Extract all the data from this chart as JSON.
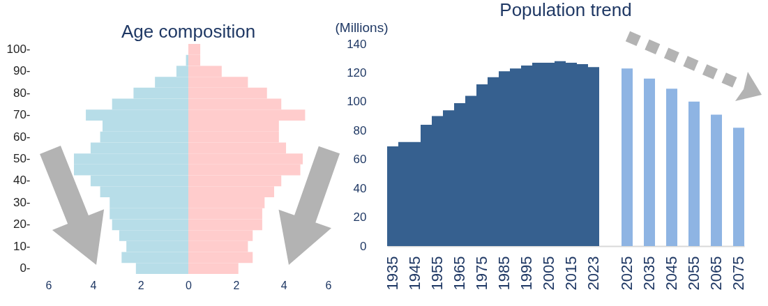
{
  "chart_data": [
    {
      "type": "bar",
      "orientation": "horizontal",
      "stacked": true,
      "title": "Age composition",
      "categories": [
        "100-",
        null,
        "90-",
        null,
        "80-",
        null,
        "70-",
        null,
        "60-",
        null,
        "50-",
        null,
        "40-",
        null,
        "30-",
        null,
        "20-",
        null,
        "10-",
        null,
        "0-"
      ],
      "series": [
        {
          "color": "#b7dde8",
          "values": [
            0,
            -0.1,
            -0.5,
            -1.4,
            -2.3,
            -3.2,
            -4.3,
            -3.6,
            -3.7,
            -4.1,
            -4.8,
            -4.8,
            -4.1,
            -3.7,
            -3.3,
            -3.3,
            -3.2,
            -2.9,
            -2.6,
            -2.8,
            -2.2
          ]
        },
        {
          "color": "#ffcccc",
          "values": [
            0.5,
            0.5,
            1.4,
            2.5,
            3.3,
            3.9,
            4.9,
            3.8,
            3.8,
            4.1,
            4.8,
            4.7,
            3.9,
            3.6,
            3.2,
            3.1,
            3.1,
            2.7,
            2.5,
            2.7,
            2.1
          ]
        }
      ],
      "xlim": [
        -6,
        6
      ],
      "xticks": [
        {
          "value": -6,
          "label": "6"
        },
        {
          "value": -4,
          "label": "4"
        },
        {
          "value": -2,
          "label": "2"
        },
        0,
        2,
        4,
        6
      ]
    },
    {
      "type": "bar",
      "title": "Population trend",
      "ylabel": "(Millions)",
      "categories": [
        "1935",
        null,
        "1945",
        null,
        "1955",
        null,
        "1965",
        null,
        "1975",
        null,
        "1985",
        null,
        "1995",
        null,
        "2005",
        null,
        "2015",
        null,
        "2023",
        null,
        null,
        "2025",
        null,
        "2035",
        null,
        "2045",
        null,
        "2055",
        null,
        "2065",
        null,
        "2075"
      ],
      "values": [
        69,
        72,
        72,
        84,
        90,
        94,
        99,
        104,
        112,
        117,
        121,
        123,
        125,
        127,
        127,
        128,
        127,
        126,
        124,
        null,
        null,
        123,
        null,
        116,
        null,
        109,
        null,
        100,
        null,
        91,
        null,
        82
      ],
      "colors": [
        "#36608f",
        "#36608f",
        "#36608f",
        "#36608f",
        "#36608f",
        "#36608f",
        "#36608f",
        "#36608f",
        "#36608f",
        "#36608f",
        "#36608f",
        "#36608f",
        "#36608f",
        "#36608f",
        "#36608f",
        "#36608f",
        "#36608f",
        "#36608f",
        "#36608f",
        null,
        null,
        "#8eb4e3",
        null,
        "#8eb4e3",
        null,
        "#8eb4e3",
        null,
        "#8eb4e3",
        null,
        "#8eb4e3",
        null,
        "#8eb4e3"
      ],
      "ylim": [
        0,
        140
      ],
      "yticks": [
        0,
        20,
        40,
        60,
        80,
        100,
        120,
        140
      ]
    }
  ]
}
